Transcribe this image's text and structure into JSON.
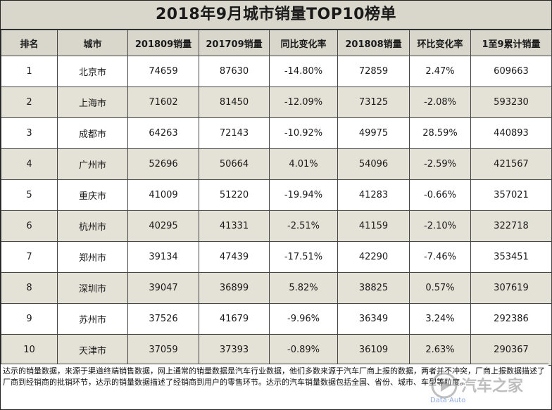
{
  "title": "2018年9月城市销量TOP10榜单",
  "headers": [
    "排名",
    "城市",
    "201809销量",
    "201709销量",
    "同比变化率",
    "201808销量",
    "环比变化率",
    "1至9累计销量"
  ],
  "rows": [
    [
      "1",
      "北京市",
      "74659",
      "87630",
      "-14.80%",
      "72859",
      "2.47%",
      "609663"
    ],
    [
      "2",
      "上海市",
      "71602",
      "81450",
      "-12.09%",
      "73125",
      "-2.08%",
      "593230"
    ],
    [
      "3",
      "成都市",
      "64263",
      "72143",
      "-10.92%",
      "49975",
      "28.59%",
      "440893"
    ],
    [
      "4",
      "广州市",
      "52696",
      "50664",
      "4.01%",
      "54096",
      "-2.59%",
      "421567"
    ],
    [
      "5",
      "重庆市",
      "41009",
      "51220",
      "-19.94%",
      "41283",
      "-0.66%",
      "357021"
    ],
    [
      "6",
      "杭州市",
      "40295",
      "41331",
      "-2.51%",
      "41159",
      "-2.10%",
      "322718"
    ],
    [
      "7",
      "郑州市",
      "39134",
      "47439",
      "-17.51%",
      "42290",
      "-7.46%",
      "353451"
    ],
    [
      "8",
      "深圳市",
      "39047",
      "36899",
      "5.82%",
      "38825",
      "0.57%",
      "307619"
    ],
    [
      "9",
      "苏州市",
      "37526",
      "41679",
      "-9.96%",
      "36349",
      "3.24%",
      "292386"
    ],
    [
      "10",
      "天津市",
      "37059",
      "37393",
      "-0.89%",
      "36109",
      "2.63%",
      "290367"
    ]
  ],
  "footnote": "达示的销量数据，来源于渠道终端销售数据，网上通常的销量数据是汽车行业数据，他们多数来源于汽车厂商上报的数据，两者并不冲突，厂商上报数据描述了厂商到经销商的批销环节，达示的销量数据描述了经销商到用户的零售环节。达示的汽车销量数据包括全国、省份、城市、车型等粒度。",
  "watermark": {
    "text": "汽车之家",
    "sub": "Data·Auto",
    "icon": "play-logo-icon"
  },
  "colors": {
    "header_bg": "#d9d6cb",
    "shade_row": "#e4e1d6",
    "plain_row": "#ffffff"
  }
}
